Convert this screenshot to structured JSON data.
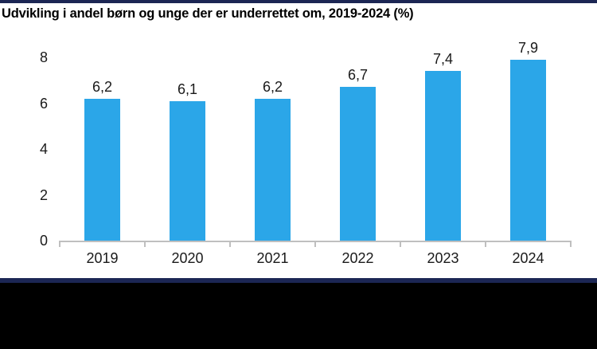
{
  "title": "Udvikling i andel børn og unge der er underrettet om, 2019-2024 (%)",
  "colors": {
    "bar": "#2BA6E8",
    "accent_navy": "#1C2654",
    "axis_line": "#BFBFBF",
    "footer_black": "#000000",
    "label_text": "#1a1a1a",
    "title_text": "#000000",
    "background": "#ffffff"
  },
  "chart_data": {
    "type": "bar",
    "title": "Udvikling i andel børn og unge der er underrettet om, 2019-2024 (%)",
    "categories": [
      "2019",
      "2020",
      "2021",
      "2022",
      "2023",
      "2024"
    ],
    "values": [
      6.2,
      6.1,
      6.2,
      6.7,
      7.4,
      7.9
    ],
    "value_labels": [
      "6,2",
      "6,1",
      "6,2",
      "6,7",
      "7,4",
      "7,9"
    ],
    "xlabel": "",
    "ylabel": "",
    "ylim": [
      0,
      8
    ],
    "yticks": [
      0,
      2,
      4,
      6,
      8
    ],
    "ytick_labels": [
      "0",
      "2",
      "4",
      "6",
      "8"
    ],
    "grid": false,
    "legend": "none",
    "decimal_separator": ","
  }
}
